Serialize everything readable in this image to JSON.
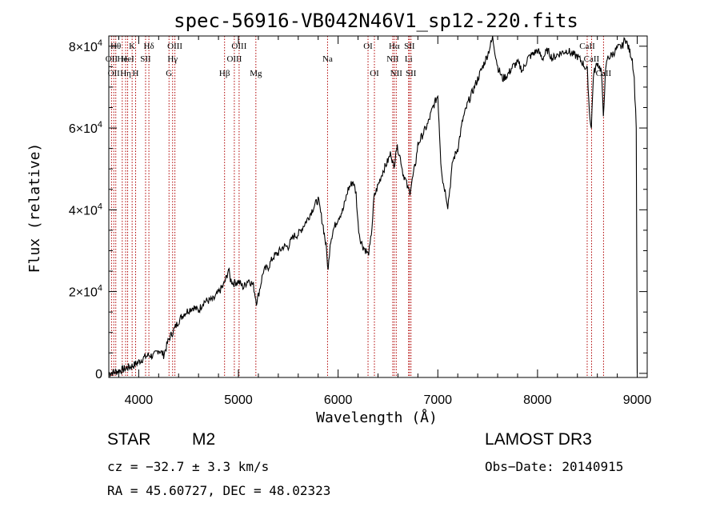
{
  "chart_data": {
    "type": "line",
    "title": "spec-56916-VB042N46V1_sp12-220.fits",
    "xlabel": "Wavelength (Å)",
    "ylabel": "Flux (relative)",
    "xlim": [
      3700,
      9100
    ],
    "ylim": [
      -1000,
      82500
    ],
    "xticks": [
      {
        "value": 4000,
        "label": "4000"
      },
      {
        "value": 5000,
        "label": "5000"
      },
      {
        "value": 6000,
        "label": "6000"
      },
      {
        "value": 7000,
        "label": "7000"
      },
      {
        "value": 8000,
        "label": "8000"
      },
      {
        "value": 9000,
        "label": "9000"
      }
    ],
    "yticks": [
      {
        "value": 0,
        "label": "0"
      },
      {
        "value": 20000,
        "label": "2×10",
        "exp": "4"
      },
      {
        "value": 40000,
        "label": "4×10",
        "exp": "4"
      },
      {
        "value": 60000,
        "label": "6×10",
        "exp": "4"
      },
      {
        "value": 80000,
        "label": "8×10",
        "exp": "4"
      }
    ],
    "series": [
      {
        "name": "flux",
        "color": "#000000",
        "points": [
          [
            3700,
            0
          ],
          [
            3780,
            500
          ],
          [
            3850,
            1000
          ],
          [
            3950,
            2000
          ],
          [
            4000,
            2800
          ],
          [
            4050,
            3800
          ],
          [
            4100,
            4500
          ],
          [
            4150,
            4200
          ],
          [
            4200,
            5800
          ],
          [
            4250,
            4500
          ],
          [
            4300,
            8200
          ],
          [
            4350,
            10500
          ],
          [
            4400,
            12800
          ],
          [
            4450,
            14500
          ],
          [
            4500,
            15500
          ],
          [
            4550,
            16200
          ],
          [
            4600,
            15300
          ],
          [
            4650,
            17500
          ],
          [
            4700,
            17800
          ],
          [
            4750,
            18000
          ],
          [
            4800,
            19800
          ],
          [
            4850,
            21500
          ],
          [
            4880,
            23500
          ],
          [
            4900,
            25500
          ],
          [
            4920,
            23000
          ],
          [
            4950,
            22000
          ],
          [
            5000,
            22500
          ],
          [
            5050,
            21000
          ],
          [
            5100,
            23000
          ],
          [
            5150,
            21500
          ],
          [
            5180,
            17500
          ],
          [
            5200,
            19000
          ],
          [
            5250,
            25000
          ],
          [
            5300,
            26000
          ],
          [
            5350,
            28500
          ],
          [
            5400,
            29500
          ],
          [
            5450,
            31000
          ],
          [
            5500,
            31000
          ],
          [
            5550,
            33500
          ],
          [
            5600,
            34000
          ],
          [
            5650,
            36000
          ],
          [
            5700,
            38000
          ],
          [
            5750,
            40500
          ],
          [
            5800,
            42500
          ],
          [
            5850,
            36000
          ],
          [
            5880,
            31000
          ],
          [
            5900,
            25000
          ],
          [
            5920,
            32000
          ],
          [
            5950,
            35000
          ],
          [
            6000,
            38000
          ],
          [
            6050,
            40000
          ],
          [
            6100,
            45000
          ],
          [
            6150,
            47000
          ],
          [
            6180,
            44000
          ],
          [
            6200,
            36500
          ],
          [
            6220,
            33000
          ],
          [
            6250,
            31000
          ],
          [
            6280,
            30000
          ],
          [
            6300,
            29000
          ],
          [
            6320,
            31000
          ],
          [
            6340,
            36000
          ],
          [
            6360,
            43000
          ],
          [
            6400,
            46000
          ],
          [
            6450,
            49500
          ],
          [
            6500,
            52000
          ],
          [
            6530,
            54000
          ],
          [
            6560,
            50000
          ],
          [
            6580,
            55000
          ],
          [
            6600,
            55000
          ],
          [
            6630,
            52000
          ],
          [
            6650,
            49000
          ],
          [
            6680,
            47000
          ],
          [
            6700,
            45000
          ],
          [
            6720,
            44500
          ],
          [
            6750,
            48000
          ],
          [
            6780,
            52000
          ],
          [
            6800,
            56000
          ],
          [
            6850,
            58500
          ],
          [
            6900,
            61000
          ],
          [
            6950,
            65000
          ],
          [
            7000,
            68000
          ],
          [
            7030,
            52000
          ],
          [
            7050,
            47000
          ],
          [
            7080,
            44000
          ],
          [
            7100,
            41000
          ],
          [
            7120,
            45000
          ],
          [
            7150,
            52000
          ],
          [
            7200,
            55000
          ],
          [
            7250,
            62000
          ],
          [
            7300,
            66000
          ],
          [
            7350,
            69000
          ],
          [
            7400,
            72000
          ],
          [
            7450,
            75000
          ],
          [
            7500,
            78000
          ],
          [
            7550,
            82000
          ],
          [
            7600,
            75000
          ],
          [
            7650,
            72000
          ],
          [
            7700,
            73000
          ],
          [
            7750,
            75000
          ],
          [
            7800,
            76000
          ],
          [
            7850,
            74000
          ],
          [
            7900,
            77000
          ],
          [
            7950,
            78000
          ],
          [
            8000,
            79000
          ],
          [
            8050,
            77000
          ],
          [
            8100,
            79000
          ],
          [
            8150,
            77000
          ],
          [
            8200,
            78000
          ],
          [
            8250,
            78500
          ],
          [
            8300,
            79000
          ],
          [
            8350,
            78000
          ],
          [
            8400,
            77500
          ],
          [
            8450,
            76000
          ],
          [
            8500,
            74000
          ],
          [
            8520,
            64000
          ],
          [
            8540,
            60000
          ],
          [
            8560,
            73000
          ],
          [
            8600,
            76000
          ],
          [
            8640,
            74000
          ],
          [
            8660,
            63000
          ],
          [
            8680,
            73000
          ],
          [
            8700,
            77000
          ],
          [
            8750,
            78000
          ],
          [
            8800,
            79500
          ],
          [
            8850,
            80000
          ],
          [
            8880,
            82000
          ],
          [
            8920,
            79000
          ],
          [
            8950,
            77000
          ],
          [
            8970,
            72000
          ],
          [
            8990,
            60000
          ],
          [
            9000,
            0
          ]
        ]
      }
    ],
    "emission_lines": [
      {
        "wave": 3727,
        "label": "OII",
        "row": 2
      },
      {
        "wave": 3750,
        "label": "OII",
        "row": 3
      },
      {
        "wave": 3770,
        "label": "Hθ",
        "row": 1
      },
      {
        "wave": 3835,
        "label": "He",
        "row": 2
      },
      {
        "wave": 3869,
        "label": "Hη",
        "row": 3
      },
      {
        "wave": 3889,
        "label": "HeI",
        "row": 2
      },
      {
        "wave": 3934,
        "label": "K",
        "row": 1
      },
      {
        "wave": 3969,
        "label": "H",
        "row": 3
      },
      {
        "wave": 4069,
        "label": "SII",
        "row": 2
      },
      {
        "wave": 4102,
        "label": "Hδ",
        "row": 1
      },
      {
        "wave": 4304,
        "label": "G",
        "row": 3
      },
      {
        "wave": 4340,
        "label": "Hγ",
        "row": 2
      },
      {
        "wave": 4363,
        "label": "OIII",
        "row": 1
      },
      {
        "wave": 4861,
        "label": "Hβ",
        "row": 3
      },
      {
        "wave": 4959,
        "label": "OIII",
        "row": 2
      },
      {
        "wave": 5007,
        "label": "OIII",
        "row": 1
      },
      {
        "wave": 5175,
        "label": "Mg",
        "row": 3
      },
      {
        "wave": 5894,
        "label": "Na",
        "row": 2
      },
      {
        "wave": 6300,
        "label": "OI",
        "row": 1
      },
      {
        "wave": 6364,
        "label": "OI",
        "row": 3
      },
      {
        "wave": 6548,
        "label": "NII",
        "row": 2
      },
      {
        "wave": 6563,
        "label": "Hα",
        "row": 1
      },
      {
        "wave": 6583,
        "label": "NII",
        "row": 3
      },
      {
        "wave": 6707,
        "label": "Li",
        "row": 2
      },
      {
        "wave": 6716,
        "label": "SII",
        "row": 1
      },
      {
        "wave": 6731,
        "label": "SII",
        "row": 3
      },
      {
        "wave": 8498,
        "label": "CaII",
        "row": 1
      },
      {
        "wave": 8542,
        "label": "CaII",
        "row": 2
      },
      {
        "wave": 8662,
        "label": "CaII",
        "row": 3
      }
    ],
    "line_color": "#b00000"
  },
  "info": {
    "object_class": "STAR",
    "subclass": "M2",
    "survey": "LAMOST DR3",
    "cz": "cz = −32.7 ± 3.3 km/s",
    "obs_date": "Obs−Date: 20140915",
    "coords": "RA =  45.60727, DEC =  48.02323"
  }
}
